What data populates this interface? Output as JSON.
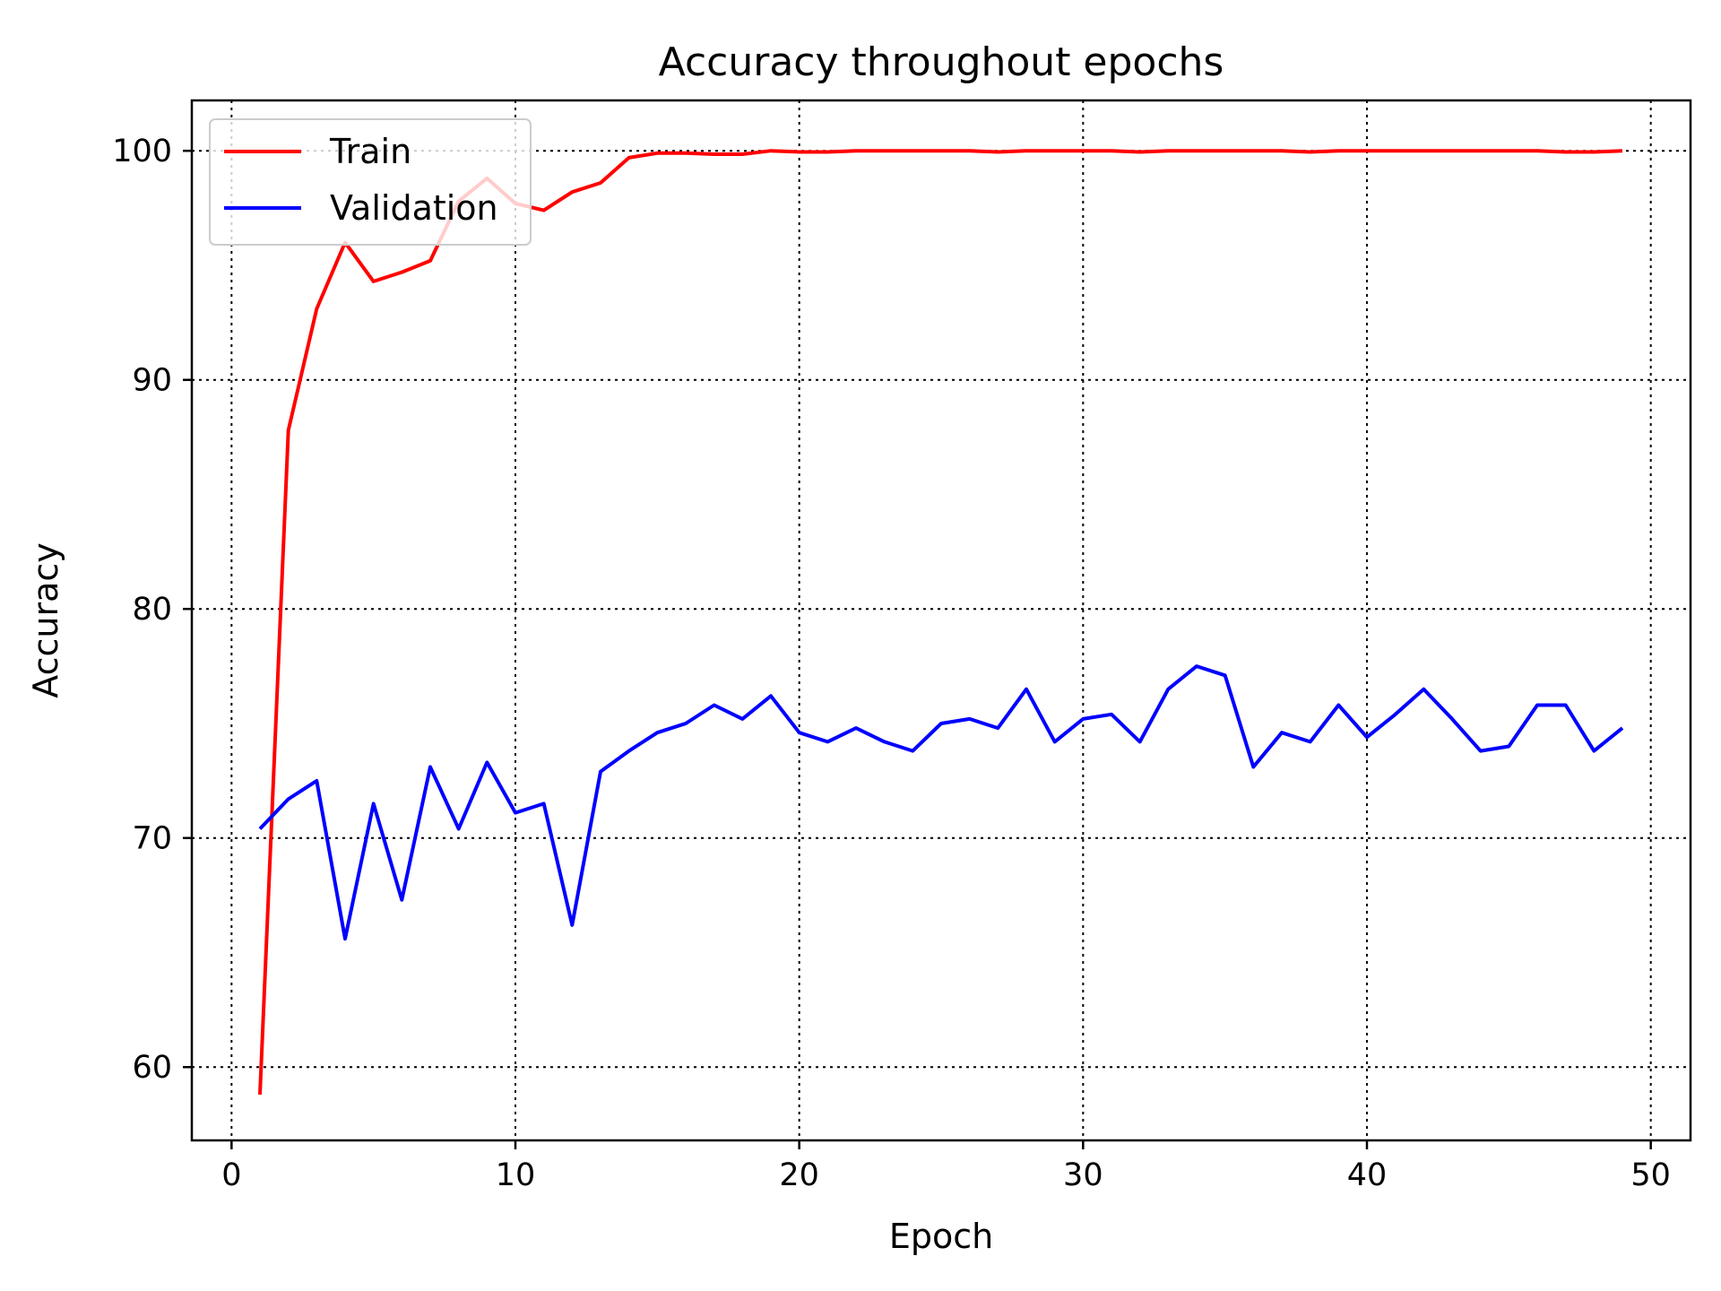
{
  "chart_data": {
    "type": "line",
    "title": "Accuracy throughout epochs",
    "xlabel": "Epoch",
    "ylabel": "Accuracy",
    "xlim": [
      -1.4,
      51.4
    ],
    "ylim": [
      56.8,
      102.2
    ],
    "xticks": [
      0,
      10,
      20,
      30,
      40,
      50
    ],
    "yticks": [
      60,
      70,
      80,
      90,
      100
    ],
    "grid": true,
    "legend_position": "top-left",
    "x": [
      1,
      2,
      3,
      4,
      5,
      6,
      7,
      8,
      9,
      10,
      11,
      12,
      13,
      14,
      15,
      16,
      17,
      18,
      19,
      20,
      21,
      22,
      23,
      24,
      25,
      26,
      27,
      28,
      29,
      30,
      31,
      32,
      33,
      34,
      35,
      36,
      37,
      38,
      39,
      40,
      41,
      42,
      43,
      44,
      45,
      46,
      47,
      48,
      49
    ],
    "series": [
      {
        "name": "Train",
        "color": "#ff0000",
        "values": [
          58.8,
          87.8,
          93.1,
          96.0,
          94.3,
          94.7,
          95.2,
          97.8,
          98.8,
          97.7,
          97.4,
          98.2,
          98.6,
          99.7,
          99.9,
          99.9,
          99.85,
          99.85,
          100.0,
          99.95,
          99.95,
          100.0,
          100.0,
          100.0,
          100.0,
          100.0,
          99.95,
          100.0,
          100.0,
          100.0,
          100.0,
          99.95,
          100.0,
          100.0,
          100.0,
          100.0,
          100.0,
          99.95,
          100.0,
          100.0,
          100.0,
          100.0,
          100.0,
          100.0,
          100.0,
          100.0,
          99.95,
          99.95,
          100.0
        ]
      },
      {
        "name": "Validation",
        "color": "#0000ff",
        "values": [
          70.4,
          71.7,
          72.5,
          65.6,
          71.5,
          67.3,
          73.1,
          70.4,
          73.3,
          71.1,
          71.5,
          66.2,
          72.9,
          73.8,
          74.6,
          75.0,
          75.8,
          75.2,
          76.2,
          74.6,
          74.2,
          74.8,
          74.2,
          73.8,
          75.0,
          75.2,
          74.8,
          76.5,
          74.2,
          75.2,
          75.4,
          74.2,
          76.5,
          77.5,
          77.1,
          73.1,
          74.6,
          74.2,
          75.8,
          74.4,
          75.4,
          76.5,
          75.2,
          73.8,
          74.0,
          75.8,
          75.8,
          73.8,
          74.8
        ]
      }
    ]
  }
}
